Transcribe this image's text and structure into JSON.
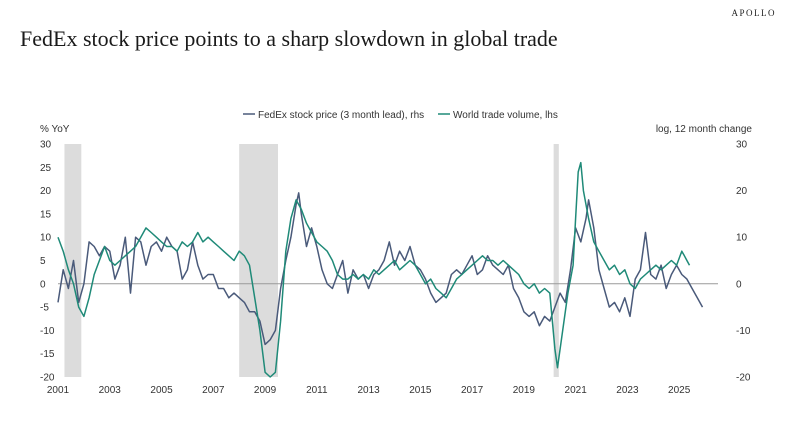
{
  "brand": "APOLLO",
  "title": "FedEx stock price points to a sharp slowdown in global trade",
  "colors": {
    "fedex": "#4a5a7a",
    "trade": "#1f8a78",
    "recession": "#dcdcdc",
    "zero": "#9a9a9a"
  },
  "chart_data": {
    "type": "line",
    "title": "FedEx stock price points to a sharp slowdown in global trade",
    "ylabel_left": "% YoY",
    "ylabel_right": "log, 12 month change",
    "xlim": [
      2001.0,
      2026.5
    ],
    "ylim_left": [
      -20,
      30
    ],
    "ylim_right": [
      -20,
      30
    ],
    "x_ticks": [
      "2001",
      "2003",
      "2005",
      "2007",
      "2009",
      "2011",
      "2013",
      "2015",
      "2017",
      "2019",
      "2021",
      "2023",
      "2025"
    ],
    "y_ticks_left": [
      "30",
      "25",
      "20",
      "15",
      "10",
      "5",
      "0",
      "-5",
      "-10",
      "-15",
      "-20"
    ],
    "y_ticks_right": [
      "30",
      "20",
      "10",
      "0",
      "-10",
      "-20"
    ],
    "legend": {
      "position": "top-center"
    },
    "recessions": [
      [
        2001.25,
        2001.9
      ],
      [
        2008.0,
        2009.5
      ],
      [
        2020.15,
        2020.35
      ]
    ],
    "series": [
      {
        "name": "FedEx stock price (3 month lead), rhs",
        "axis": "right",
        "points": [
          [
            2001.0,
            -4
          ],
          [
            2001.2,
            3
          ],
          [
            2001.4,
            -1
          ],
          [
            2001.6,
            5
          ],
          [
            2001.8,
            -4
          ],
          [
            2002.0,
            0
          ],
          [
            2002.2,
            9
          ],
          [
            2002.4,
            8
          ],
          [
            2002.6,
            6
          ],
          [
            2002.8,
            8
          ],
          [
            2003.0,
            7
          ],
          [
            2003.2,
            1
          ],
          [
            2003.4,
            4
          ],
          [
            2003.6,
            10
          ],
          [
            2003.8,
            -2
          ],
          [
            2004.0,
            10
          ],
          [
            2004.2,
            9
          ],
          [
            2004.4,
            4
          ],
          [
            2004.6,
            8
          ],
          [
            2004.8,
            9
          ],
          [
            2005.0,
            7
          ],
          [
            2005.2,
            10
          ],
          [
            2005.4,
            8
          ],
          [
            2005.6,
            7
          ],
          [
            2005.8,
            1
          ],
          [
            2006.0,
            3
          ],
          [
            2006.2,
            9
          ],
          [
            2006.4,
            4
          ],
          [
            2006.6,
            1
          ],
          [
            2006.8,
            2
          ],
          [
            2007.0,
            2
          ],
          [
            2007.2,
            -1
          ],
          [
            2007.4,
            -1
          ],
          [
            2007.6,
            -3
          ],
          [
            2007.8,
            -2
          ],
          [
            2008.0,
            -3
          ],
          [
            2008.2,
            -4
          ],
          [
            2008.4,
            -6
          ],
          [
            2008.6,
            -6
          ],
          [
            2008.8,
            -8
          ],
          [
            2009.0,
            -13
          ],
          [
            2009.2,
            -12
          ],
          [
            2009.4,
            -10
          ],
          [
            2009.6,
            -1
          ],
          [
            2009.8,
            5
          ],
          [
            2010.0,
            10
          ],
          [
            2010.2,
            17
          ],
          [
            2010.3,
            19.5
          ],
          [
            2010.4,
            15
          ],
          [
            2010.6,
            8
          ],
          [
            2010.8,
            12
          ],
          [
            2011.0,
            8
          ],
          [
            2011.2,
            3
          ],
          [
            2011.4,
            0
          ],
          [
            2011.6,
            -1
          ],
          [
            2011.8,
            2
          ],
          [
            2012.0,
            5
          ],
          [
            2012.2,
            -2
          ],
          [
            2012.4,
            3
          ],
          [
            2012.6,
            1
          ],
          [
            2012.8,
            2
          ],
          [
            2013.0,
            -1
          ],
          [
            2013.2,
            2
          ],
          [
            2013.4,
            3
          ],
          [
            2013.6,
            5
          ],
          [
            2013.8,
            9
          ],
          [
            2014.0,
            4
          ],
          [
            2014.2,
            7
          ],
          [
            2014.4,
            5
          ],
          [
            2014.6,
            8
          ],
          [
            2014.8,
            4
          ],
          [
            2015.0,
            3
          ],
          [
            2015.2,
            1
          ],
          [
            2015.4,
            -2
          ],
          [
            2015.6,
            -4
          ],
          [
            2015.8,
            -3
          ],
          [
            2016.0,
            -2
          ],
          [
            2016.2,
            2
          ],
          [
            2016.4,
            3
          ],
          [
            2016.6,
            2
          ],
          [
            2016.8,
            4
          ],
          [
            2017.0,
            6
          ],
          [
            2017.2,
            2
          ],
          [
            2017.4,
            3
          ],
          [
            2017.6,
            6
          ],
          [
            2017.8,
            4
          ],
          [
            2018.0,
            3
          ],
          [
            2018.2,
            2
          ],
          [
            2018.4,
            4
          ],
          [
            2018.6,
            -1
          ],
          [
            2018.8,
            -3
          ],
          [
            2019.0,
            -6
          ],
          [
            2019.2,
            -7
          ],
          [
            2019.4,
            -6
          ],
          [
            2019.6,
            -9
          ],
          [
            2019.8,
            -7
          ],
          [
            2020.0,
            -8
          ],
          [
            2020.2,
            -5
          ],
          [
            2020.4,
            -2
          ],
          [
            2020.6,
            -4
          ],
          [
            2020.8,
            3
          ],
          [
            2021.0,
            12
          ],
          [
            2021.2,
            9
          ],
          [
            2021.4,
            14
          ],
          [
            2021.5,
            18
          ],
          [
            2021.7,
            12
          ],
          [
            2021.9,
            3
          ],
          [
            2022.1,
            -1
          ],
          [
            2022.3,
            -5
          ],
          [
            2022.5,
            -4
          ],
          [
            2022.7,
            -6
          ],
          [
            2022.9,
            -3
          ],
          [
            2023.1,
            -7
          ],
          [
            2023.3,
            1
          ],
          [
            2023.5,
            3
          ],
          [
            2023.7,
            11
          ],
          [
            2023.9,
            2
          ],
          [
            2024.1,
            1
          ],
          [
            2024.3,
            4
          ],
          [
            2024.5,
            -1
          ],
          [
            2024.7,
            2
          ],
          [
            2024.9,
            4
          ],
          [
            2025.1,
            2
          ],
          [
            2025.3,
            1
          ],
          [
            2025.5,
            -1
          ],
          [
            2025.7,
            -3
          ],
          [
            2025.9,
            -5
          ]
        ]
      },
      {
        "name": "World trade volume, lhs",
        "axis": "left",
        "points": [
          [
            2001.0,
            10
          ],
          [
            2001.2,
            7
          ],
          [
            2001.4,
            3
          ],
          [
            2001.6,
            0
          ],
          [
            2001.8,
            -5
          ],
          [
            2002.0,
            -7
          ],
          [
            2002.2,
            -3
          ],
          [
            2002.4,
            2
          ],
          [
            2002.6,
            5
          ],
          [
            2002.8,
            8
          ],
          [
            2003.0,
            5
          ],
          [
            2003.2,
            4
          ],
          [
            2003.4,
            5
          ],
          [
            2003.6,
            6
          ],
          [
            2003.8,
            7
          ],
          [
            2004.0,
            8
          ],
          [
            2004.2,
            10
          ],
          [
            2004.4,
            12
          ],
          [
            2004.6,
            11
          ],
          [
            2004.8,
            10
          ],
          [
            2005.0,
            9
          ],
          [
            2005.2,
            8
          ],
          [
            2005.4,
            8
          ],
          [
            2005.6,
            7
          ],
          [
            2005.8,
            9
          ],
          [
            2006.0,
            8
          ],
          [
            2006.2,
            9
          ],
          [
            2006.4,
            11
          ],
          [
            2006.6,
            9
          ],
          [
            2006.8,
            10
          ],
          [
            2007.0,
            9
          ],
          [
            2007.2,
            8
          ],
          [
            2007.4,
            7
          ],
          [
            2007.6,
            6
          ],
          [
            2007.8,
            5
          ],
          [
            2008.0,
            7
          ],
          [
            2008.2,
            6
          ],
          [
            2008.4,
            4
          ],
          [
            2008.6,
            -3
          ],
          [
            2008.8,
            -10
          ],
          [
            2009.0,
            -19
          ],
          [
            2009.2,
            -20
          ],
          [
            2009.4,
            -19
          ],
          [
            2009.6,
            -8
          ],
          [
            2009.8,
            7
          ],
          [
            2010.0,
            14
          ],
          [
            2010.2,
            18
          ],
          [
            2010.4,
            16
          ],
          [
            2010.6,
            13
          ],
          [
            2010.8,
            11
          ],
          [
            2011.0,
            9
          ],
          [
            2011.2,
            8
          ],
          [
            2011.4,
            7
          ],
          [
            2011.6,
            5
          ],
          [
            2011.8,
            2
          ],
          [
            2012.0,
            1
          ],
          [
            2012.2,
            1
          ],
          [
            2012.4,
            2
          ],
          [
            2012.6,
            1
          ],
          [
            2012.8,
            2
          ],
          [
            2013.0,
            1
          ],
          [
            2013.2,
            3
          ],
          [
            2013.4,
            2
          ],
          [
            2013.6,
            3
          ],
          [
            2013.8,
            4
          ],
          [
            2014.0,
            5
          ],
          [
            2014.2,
            3
          ],
          [
            2014.4,
            4
          ],
          [
            2014.6,
            5
          ],
          [
            2014.8,
            4
          ],
          [
            2015.0,
            2
          ],
          [
            2015.2,
            0
          ],
          [
            2015.4,
            1
          ],
          [
            2015.6,
            -1
          ],
          [
            2015.8,
            -2
          ],
          [
            2016.0,
            -3
          ],
          [
            2016.2,
            -1
          ],
          [
            2016.4,
            1
          ],
          [
            2016.6,
            2
          ],
          [
            2016.8,
            3
          ],
          [
            2017.0,
            4
          ],
          [
            2017.2,
            5
          ],
          [
            2017.4,
            6
          ],
          [
            2017.6,
            5
          ],
          [
            2017.8,
            5
          ],
          [
            2018.0,
            4
          ],
          [
            2018.2,
            5
          ],
          [
            2018.4,
            4
          ],
          [
            2018.6,
            3
          ],
          [
            2018.8,
            2
          ],
          [
            2019.0,
            0
          ],
          [
            2019.2,
            -1
          ],
          [
            2019.4,
            0
          ],
          [
            2019.6,
            -2
          ],
          [
            2019.8,
            -1
          ],
          [
            2020.0,
            -2
          ],
          [
            2020.2,
            -14
          ],
          [
            2020.3,
            -18
          ],
          [
            2020.5,
            -10
          ],
          [
            2020.7,
            -2
          ],
          [
            2020.9,
            4
          ],
          [
            2021.0,
            14
          ],
          [
            2021.1,
            24
          ],
          [
            2021.2,
            26
          ],
          [
            2021.3,
            20
          ],
          [
            2021.5,
            14
          ],
          [
            2021.7,
            9
          ],
          [
            2021.9,
            7
          ],
          [
            2022.1,
            5
          ],
          [
            2022.3,
            3
          ],
          [
            2022.5,
            4
          ],
          [
            2022.7,
            2
          ],
          [
            2022.9,
            3
          ],
          [
            2023.1,
            0
          ],
          [
            2023.3,
            -1
          ],
          [
            2023.5,
            1
          ],
          [
            2023.7,
            2
          ],
          [
            2023.9,
            3
          ],
          [
            2024.1,
            4
          ],
          [
            2024.3,
            3
          ],
          [
            2024.5,
            4
          ],
          [
            2024.7,
            5
          ],
          [
            2024.9,
            4
          ],
          [
            2025.1,
            7
          ],
          [
            2025.2,
            6
          ],
          [
            2025.3,
            5
          ],
          [
            2025.4,
            4
          ]
        ]
      }
    ]
  }
}
